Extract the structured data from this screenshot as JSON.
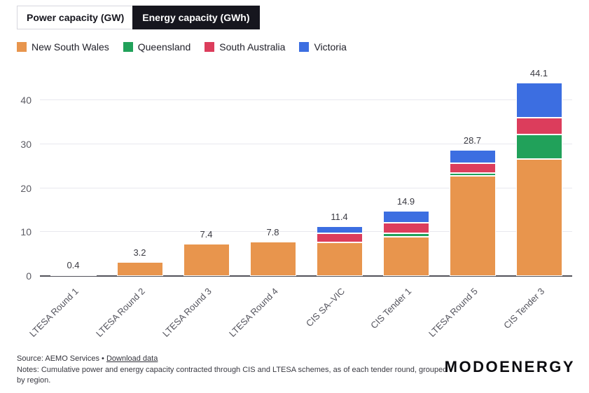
{
  "tabs": [
    {
      "label": "Power capacity (GW)",
      "active": false
    },
    {
      "label": "Energy capacity (GWh)",
      "active": true
    }
  ],
  "chart_data": {
    "type": "bar",
    "stacked": true,
    "grid": true,
    "legend_position": "top",
    "categories": [
      "LTESA Round 1",
      "LTESA Round 2",
      "LTESA Round 3",
      "LTESA Round 4",
      "CIS SA–VIC",
      "CIS Tender 1",
      "LTESA Round 5",
      "CIS Tender 3"
    ],
    "series": [
      {
        "name": "New South Wales",
        "color": "#E8954D",
        "values": [
          0.4,
          3.2,
          7.4,
          7.8,
          7.6,
          9.0,
          22.8,
          26.6
        ]
      },
      {
        "name": "Queensland",
        "color": "#21A15A",
        "values": [
          0,
          0,
          0,
          0,
          0,
          0.7,
          0.6,
          5.6
        ]
      },
      {
        "name": "South Australia",
        "color": "#DC3D5C",
        "values": [
          0,
          0,
          0,
          0,
          2.1,
          2.4,
          2.3,
          3.8
        ]
      },
      {
        "name": "Victoria",
        "color": "#3C6EE1",
        "values": [
          0,
          0,
          0,
          0,
          1.7,
          2.8,
          3.0,
          8.1
        ]
      }
    ],
    "totals": [
      "0.4",
      "3.2",
      "7.4",
      "7.8",
      "11.4",
      "14.9",
      "28.7",
      "44.1"
    ],
    "ylabel": "",
    "xlabel": "",
    "ylim": [
      0,
      45
    ],
    "yticks": [
      0,
      10,
      20,
      30,
      40
    ]
  },
  "footer": {
    "source_prefix": "Source: AEMO Services • ",
    "download_link": "Download data",
    "notes": "Notes: Cumulative power and energy capacity contracted through CIS and LTESA schemes, as of each tender round, grouped by region.",
    "brand": "MODOENERGY"
  }
}
